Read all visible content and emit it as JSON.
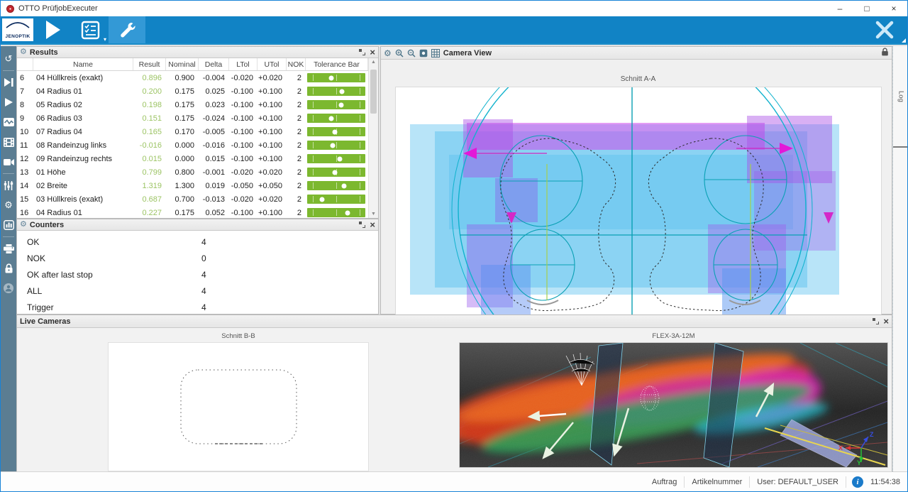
{
  "titlebar": {
    "title": "OTTO PrüfjobExecuter"
  },
  "window_controls": {
    "minimize": "–",
    "maximize": "□",
    "close": "×"
  },
  "toolbar": {
    "logo_text": "JENOPTIK"
  },
  "glyphs": {
    "gear": "⚙",
    "close": "×",
    "caret_down": "▾",
    "up": "▲",
    "down": "▼",
    "info": "i"
  },
  "panels": {
    "results": {
      "title": "Results"
    },
    "counters": {
      "title": "Counters"
    },
    "camera": {
      "title": "Camera View",
      "caption": "Schnitt A-A"
    },
    "live": {
      "title": "Live Cameras",
      "left_caption": "Schnitt B-B",
      "right_caption": "FLEX-3A-12M"
    },
    "log": {
      "label": "Log"
    }
  },
  "results_table": {
    "columns": [
      "Name",
      "Result",
      "Nominal",
      "Delta",
      "LTol",
      "UTol",
      "NOK",
      "Tolerance Bar"
    ],
    "rows": [
      {
        "num": "6",
        "name": "04 Hüllkreis (exakt)",
        "result": "0.896",
        "nominal": "0.900",
        "delta": "-0.004",
        "ltol": "-0.020",
        "utol": "+0.020",
        "nok": "2",
        "dot": 0.42
      },
      {
        "num": "7",
        "name": "04 Radius 01",
        "result": "0.200",
        "nominal": "0.175",
        "delta": "0.025",
        "ltol": "-0.100",
        "utol": "+0.100",
        "nok": "2",
        "dot": 0.6
      },
      {
        "num": "8",
        "name": "05 Radius 02",
        "result": "0.198",
        "nominal": "0.175",
        "delta": "0.023",
        "ltol": "-0.100",
        "utol": "+0.100",
        "nok": "2",
        "dot": 0.59
      },
      {
        "num": "9",
        "name": "06 Radius 03",
        "result": "0.151",
        "nominal": "0.175",
        "delta": "-0.024",
        "ltol": "-0.100",
        "utol": "+0.100",
        "nok": "2",
        "dot": 0.41
      },
      {
        "num": "10",
        "name": "07 Radius 04",
        "result": "0.165",
        "nominal": "0.170",
        "delta": "-0.005",
        "ltol": "-0.100",
        "utol": "+0.100",
        "nok": "2",
        "dot": 0.48
      },
      {
        "num": "11",
        "name": "08 Randeinzug links",
        "result": "-0.016",
        "nominal": "0.000",
        "delta": "-0.016",
        "ltol": "-0.100",
        "utol": "+0.100",
        "nok": "2",
        "dot": 0.44
      },
      {
        "num": "12",
        "name": "09 Randeinzug rechts",
        "result": "0.015",
        "nominal": "0.000",
        "delta": "0.015",
        "ltol": "-0.100",
        "utol": "+0.100",
        "nok": "2",
        "dot": 0.56
      },
      {
        "num": "13",
        "name": "01 Höhe",
        "result": "0.799",
        "nominal": "0.800",
        "delta": "-0.001",
        "ltol": "-0.020",
        "utol": "+0.020",
        "nok": "2",
        "dot": 0.48
      },
      {
        "num": "14",
        "name": "02 Breite",
        "result": "1.319",
        "nominal": "1.300",
        "delta": "0.019",
        "ltol": "-0.050",
        "utol": "+0.050",
        "nok": "2",
        "dot": 0.64
      },
      {
        "num": "15",
        "name": "03 Hüllkreis (exakt)",
        "result": "0.687",
        "nominal": "0.700",
        "delta": "-0.013",
        "ltol": "-0.020",
        "utol": "+0.020",
        "nok": "2",
        "dot": 0.25
      },
      {
        "num": "16",
        "name": "04 Radius 01",
        "result": "0.227",
        "nominal": "0.175",
        "delta": "0.052",
        "ltol": "-0.100",
        "utol": "+0.100",
        "nok": "2",
        "dot": 0.7
      }
    ]
  },
  "counters_list": {
    "rows": [
      {
        "label": "OK",
        "value": "4"
      },
      {
        "label": "NOK",
        "value": "0"
      },
      {
        "label": "OK after last stop",
        "value": "4"
      },
      {
        "label": "ALL",
        "value": "4"
      },
      {
        "label": "Trigger",
        "value": "4"
      }
    ]
  },
  "statusbar": {
    "auftrag": "Auftrag",
    "artikelnummer": "Artikelnummer",
    "user": "User: DEFAULT_USER",
    "time": "11:54:38"
  },
  "colors": {
    "toolbar_blue": "#1183c5",
    "selected_blue": "#3399d6",
    "sidebar_slate": "#5b7d92",
    "result_green": "#9cc464",
    "tolerance_bar_green": "#7cb82f"
  }
}
